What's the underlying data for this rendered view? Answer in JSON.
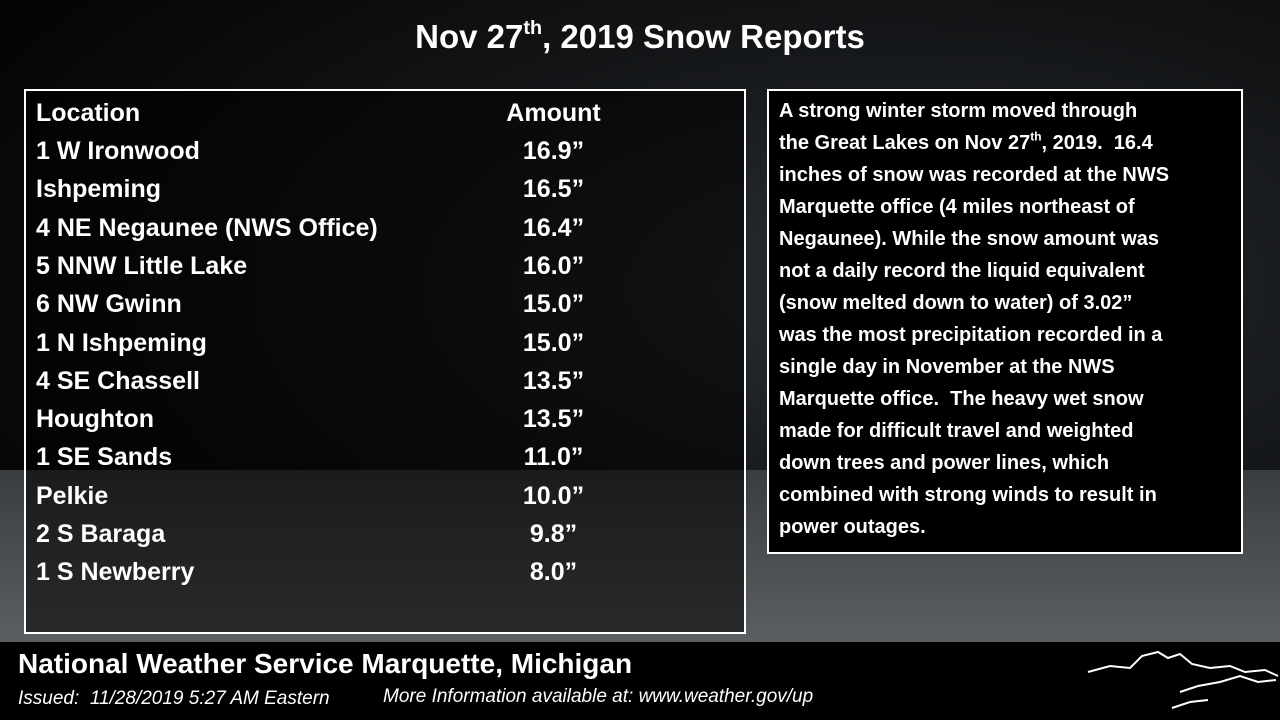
{
  "header": {
    "title_before": "Nov 27",
    "title_sup": "th",
    "title_after": ", 2019 Snow Reports"
  },
  "table": {
    "columns": [
      "Location",
      "Amount"
    ],
    "rows": [
      [
        "1 W Ironwood",
        "16.9”"
      ],
      [
        "Ishpeming",
        "16.5”"
      ],
      [
        "4 NE Negaunee (NWS Office)",
        "16.4”"
      ],
      [
        "5 NNW Little Lake",
        "16.0”"
      ],
      [
        "6 NW Gwinn",
        "15.0”"
      ],
      [
        "1 N Ishpeming",
        "15.0”"
      ],
      [
        "4 SE Chassell",
        "13.5”"
      ],
      [
        "Houghton",
        "13.5”"
      ],
      [
        "1 SE Sands",
        "11.0”"
      ],
      [
        "Pelkie",
        "10.0”"
      ],
      [
        "2 S Baraga",
        "9.8”"
      ],
      [
        "1 S Newberry",
        "8.0”"
      ]
    ]
  },
  "description": {
    "lines": [
      "A strong winter storm moved through",
      {
        "before": "the Great Lakes on Nov 27",
        "sup": "th",
        "after": ", 2019.  16.4"
      },
      "inches of snow was recorded at the NWS",
      "Marquette office (4 miles northeast of",
      "Negaunee). While the snow amount was",
      "not a daily record the liquid equivalent",
      "(snow melted down to water) of 3.02”",
      "was the most precipitation recorded in a",
      "single day in November at the NWS",
      "Marquette office.  The heavy wet snow",
      "made for difficult travel and weighted",
      "down trees and power lines, which",
      "combined with strong winds to result in",
      "power outages."
    ]
  },
  "footer": {
    "office": "National Weather Service Marquette, Michigan",
    "issued": "Issued:  11/28/2019 5:27 AM Eastern",
    "more_info": "More Information available at: www.weather.gov/up"
  }
}
